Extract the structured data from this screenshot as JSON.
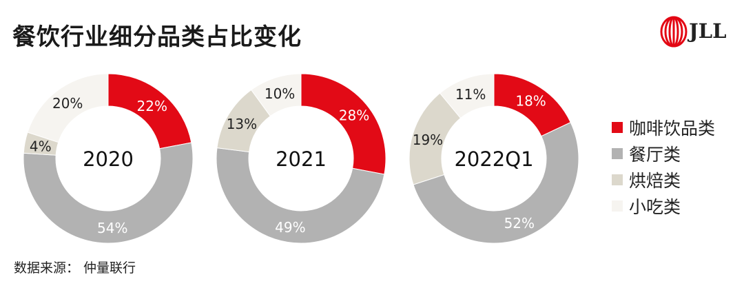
{
  "title": "餐饮行业细分品类占比变化",
  "logo": {
    "text": "JLL",
    "color": "#e30613"
  },
  "source": "数据来源： 仲量联行",
  "colors": {
    "咖啡饮品类": "#e20a16",
    "餐厅类": "#b2b2b2",
    "烘焙类": "#dcd8cc",
    "小吃类": "#f6f4f0"
  },
  "legend": [
    {
      "label": "咖啡饮品类",
      "color": "#e20a16"
    },
    {
      "label": "餐厅类",
      "color": "#b2b2b2"
    },
    {
      "label": "烘焙类",
      "color": "#dcd8cc"
    },
    {
      "label": "小吃类",
      "color": "#f6f4f0"
    }
  ],
  "chart_data": [
    {
      "type": "pie",
      "center_label": "2020",
      "categories": [
        "咖啡饮品类",
        "餐厅类",
        "烘焙类",
        "小吃类"
      ],
      "values": [
        22,
        54,
        4,
        20
      ],
      "labels": [
        "22%",
        "54%",
        "4%",
        "20%"
      ]
    },
    {
      "type": "pie",
      "center_label": "2021",
      "categories": [
        "咖啡饮品类",
        "餐厅类",
        "烘焙类",
        "小吃类"
      ],
      "values": [
        28,
        49,
        13,
        10
      ],
      "labels": [
        "28%",
        "49%",
        "13%",
        "10%"
      ]
    },
    {
      "type": "pie",
      "center_label": "2022Q1",
      "categories": [
        "咖啡饮品类",
        "餐厅类",
        "烘焙类",
        "小吃类"
      ],
      "values": [
        18,
        52,
        19,
        11
      ],
      "labels": [
        "18%",
        "52%",
        "19%",
        "11%"
      ]
    }
  ]
}
